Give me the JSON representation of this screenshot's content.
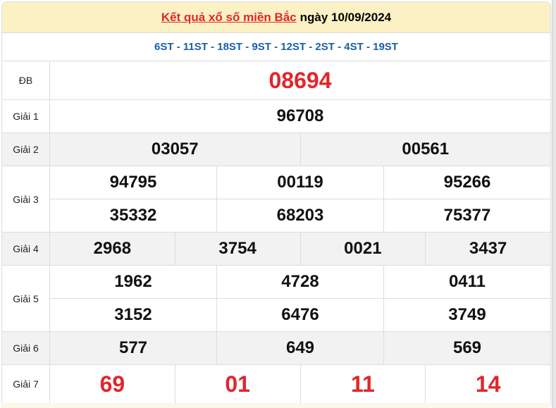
{
  "header": {
    "link": "Kết quả xổ số miền Bắc",
    "date_text": "ngày 10/09/2024"
  },
  "codes": "6ST - 11ST - 18ST - 9ST - 12ST - 2ST - 4ST - 19ST",
  "prizes": {
    "db": {
      "label": "ĐB",
      "values": [
        "08694"
      ]
    },
    "g1": {
      "label": "Giải 1",
      "values": [
        "96708"
      ]
    },
    "g2": {
      "label": "Giải 2",
      "values": [
        "03057",
        "00561"
      ]
    },
    "g3": {
      "label": "Giải 3",
      "values": [
        "94795",
        "00119",
        "95266",
        "35332",
        "68203",
        "75377"
      ]
    },
    "g4": {
      "label": "Giải 4",
      "values": [
        "2968",
        "3754",
        "0021",
        "3437"
      ]
    },
    "g5": {
      "label": "Giải 5",
      "values": [
        "1962",
        "4728",
        "0411",
        "3152",
        "6476",
        "3749"
      ]
    },
    "g6": {
      "label": "Giải 6",
      "values": [
        "577",
        "649",
        "569"
      ]
    },
    "g7": {
      "label": "Giải 7",
      "values": [
        "69",
        "01",
        "11",
        "14"
      ]
    }
  },
  "colors": {
    "red": "#e0262b",
    "blue": "#1b5ea8",
    "header_bg": "#fbf1c4"
  }
}
